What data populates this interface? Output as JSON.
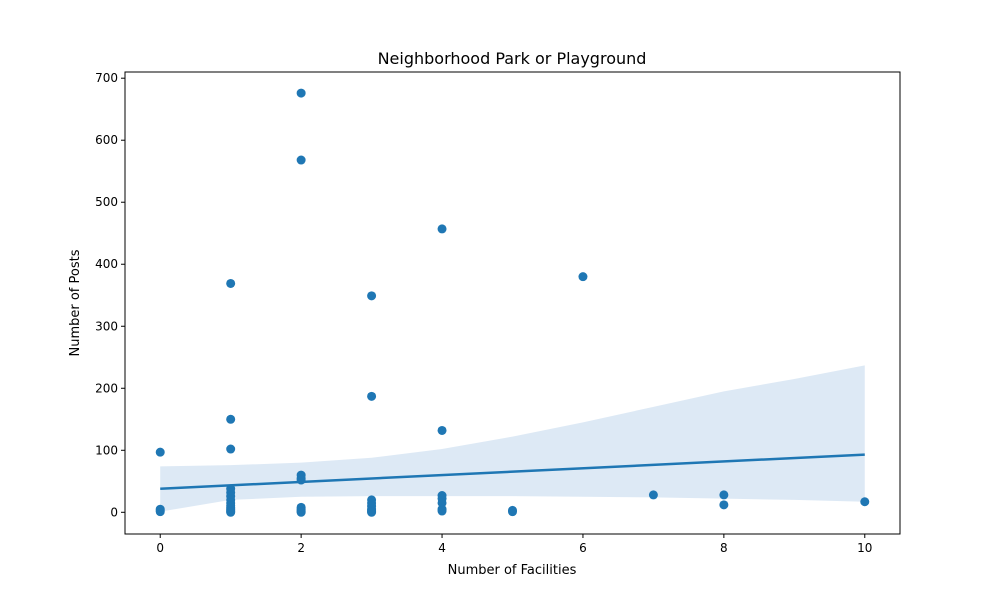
{
  "chart_data": {
    "type": "scatter",
    "title": "Neighborhood Park or Playground",
    "xlabel": "Number of Facilities",
    "ylabel": "Number of Posts",
    "xlim": [
      -0.5,
      10.5
    ],
    "ylim": [
      -35,
      710
    ],
    "xticks": [
      0,
      2,
      4,
      6,
      8,
      10
    ],
    "yticks": [
      0,
      100,
      200,
      300,
      400,
      500,
      600,
      700
    ],
    "grid": false,
    "point_color": "#1f77b4",
    "band_color": "#c6dbee",
    "points": [
      [
        0,
        97
      ],
      [
        0,
        5
      ],
      [
        0,
        3
      ],
      [
        0,
        1
      ],
      [
        1,
        369
      ],
      [
        1,
        150
      ],
      [
        1,
        102
      ],
      [
        1,
        38
      ],
      [
        1,
        32
      ],
      [
        1,
        26
      ],
      [
        1,
        20
      ],
      [
        1,
        15
      ],
      [
        1,
        11
      ],
      [
        1,
        8
      ],
      [
        1,
        5
      ],
      [
        1,
        3
      ],
      [
        1,
        1
      ],
      [
        1,
        0
      ],
      [
        2,
        676
      ],
      [
        2,
        568
      ],
      [
        2,
        60
      ],
      [
        2,
        55
      ],
      [
        2,
        52
      ],
      [
        2,
        8
      ],
      [
        2,
        5
      ],
      [
        2,
        3
      ],
      [
        2,
        1
      ],
      [
        2,
        0
      ],
      [
        3,
        349
      ],
      [
        3,
        187
      ],
      [
        3,
        20
      ],
      [
        3,
        15
      ],
      [
        3,
        10
      ],
      [
        3,
        5
      ],
      [
        3,
        3
      ],
      [
        3,
        1
      ],
      [
        3,
        0
      ],
      [
        4,
        457
      ],
      [
        4,
        132
      ],
      [
        4,
        27
      ],
      [
        4,
        22
      ],
      [
        4,
        15
      ],
      [
        4,
        5
      ],
      [
        4,
        2
      ],
      [
        5,
        3
      ],
      [
        5,
        1
      ],
      [
        6,
        380
      ],
      [
        7,
        28
      ],
      [
        8,
        28
      ],
      [
        8,
        12
      ],
      [
        10,
        17
      ]
    ],
    "regression": {
      "x": [
        0,
        10
      ],
      "y": [
        38,
        93
      ]
    },
    "confidence_band": {
      "x": [
        0,
        1,
        2,
        3,
        4,
        5,
        6,
        7,
        8,
        9,
        10
      ],
      "upper": [
        74,
        76,
        80,
        88,
        102,
        122,
        145,
        170,
        195,
        215,
        237
      ],
      "lower": [
        1,
        20,
        25,
        26,
        26,
        26,
        25,
        24,
        22,
        20,
        17
      ]
    }
  }
}
